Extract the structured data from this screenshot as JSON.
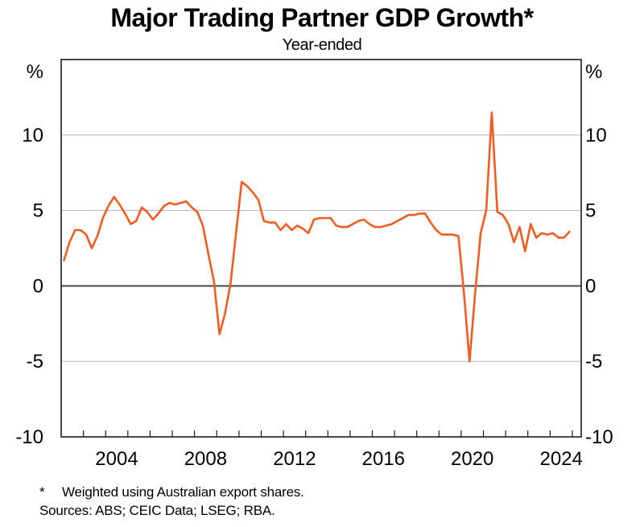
{
  "header": {
    "title": "Major Trading Partner GDP Growth*",
    "subtitle": "Year-ended"
  },
  "footnote": {
    "marker": "*",
    "text": "Weighted using Australian export shares."
  },
  "sources": "Sources: ABS; CEIC Data; LSEG; RBA.",
  "chart_data": {
    "type": "line",
    "title": "Major Trading Partner GDP Growth*",
    "subtitle": "Year-ended",
    "unit": "%",
    "ylim": [
      -10,
      15
    ],
    "yticks": [
      -10,
      -5,
      0,
      5,
      10
    ],
    "xlim": [
      2002,
      2025.4
    ],
    "xticks_range": [
      2003,
      2025
    ],
    "xlabel_years": [
      2004,
      2008,
      2012,
      2016,
      2020,
      2024
    ],
    "grid": true,
    "legend": "none",
    "colors": {
      "line": "#F15C22",
      "grid": "#bbbbbb",
      "zero": "#58585a",
      "frame": "#1a1a1a"
    },
    "series": [
      {
        "name": "Major trading partner GDP growth, year-ended",
        "x": [
          2002.125,
          2002.375,
          2002.625,
          2002.875,
          2003.125,
          2003.375,
          2003.625,
          2003.875,
          2004.125,
          2004.375,
          2004.625,
          2004.875,
          2005.125,
          2005.375,
          2005.625,
          2005.875,
          2006.125,
          2006.375,
          2006.625,
          2006.875,
          2007.125,
          2007.375,
          2007.625,
          2007.875,
          2008.125,
          2008.375,
          2008.625,
          2008.875,
          2009.125,
          2009.375,
          2009.625,
          2009.875,
          2010.125,
          2010.375,
          2010.625,
          2010.875,
          2011.125,
          2011.375,
          2011.625,
          2011.875,
          2012.125,
          2012.375,
          2012.625,
          2012.875,
          2013.125,
          2013.375,
          2013.625,
          2013.875,
          2014.125,
          2014.375,
          2014.625,
          2014.875,
          2015.125,
          2015.375,
          2015.625,
          2015.875,
          2016.125,
          2016.375,
          2016.625,
          2016.875,
          2017.125,
          2017.375,
          2017.625,
          2017.875,
          2018.125,
          2018.375,
          2018.625,
          2018.875,
          2019.125,
          2019.375,
          2019.625,
          2019.875,
          2020.125,
          2020.375,
          2020.625,
          2020.875,
          2021.125,
          2021.375,
          2021.625,
          2021.875,
          2022.125,
          2022.375,
          2022.625,
          2022.875,
          2023.125,
          2023.375,
          2023.625,
          2023.875,
          2024.125,
          2024.375,
          2024.625,
          2024.875
        ],
        "values": [
          1.7,
          2.9,
          3.7,
          3.7,
          3.4,
          2.5,
          3.3,
          4.5,
          5.3,
          5.9,
          5.4,
          4.8,
          4.1,
          4.3,
          5.2,
          4.9,
          4.4,
          4.8,
          5.3,
          5.5,
          5.4,
          5.5,
          5.6,
          5.2,
          4.9,
          4.0,
          2.1,
          0.3,
          -3.2,
          -1.8,
          0.2,
          3.6,
          6.9,
          6.6,
          6.2,
          5.7,
          4.3,
          4.2,
          4.2,
          3.7,
          4.1,
          3.7,
          4.0,
          3.8,
          3.5,
          4.4,
          4.5,
          4.5,
          4.5,
          4.0,
          3.9,
          3.9,
          4.1,
          4.3,
          4.4,
          4.1,
          3.9,
          3.9,
          4.0,
          4.1,
          4.3,
          4.5,
          4.7,
          4.7,
          4.8,
          4.8,
          4.2,
          3.7,
          3.4,
          3.4,
          3.4,
          3.3,
          -0.5,
          -5.0,
          -0.5,
          3.5,
          5.0,
          11.5,
          4.9,
          4.7,
          4.1,
          2.9,
          3.9,
          2.3,
          4.1,
          3.2,
          3.5,
          3.4,
          3.5,
          3.2,
          3.2,
          3.6
        ]
      }
    ]
  }
}
